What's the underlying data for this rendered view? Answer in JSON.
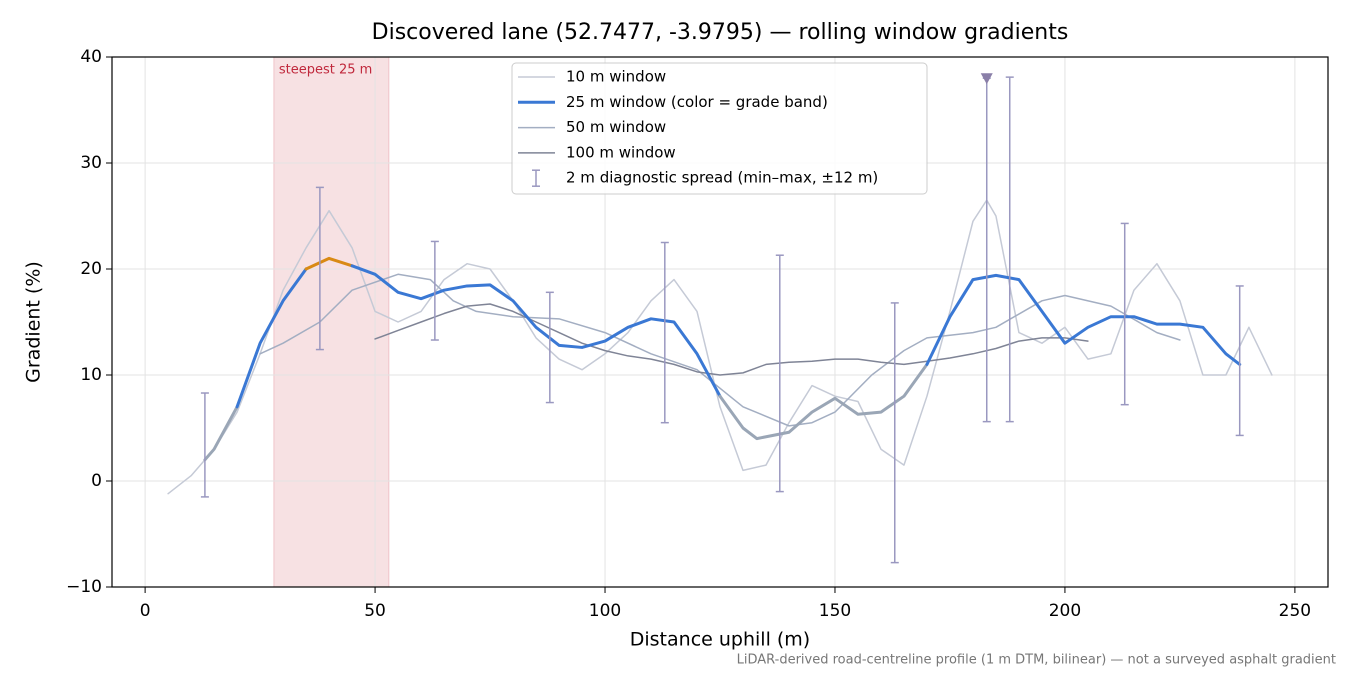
{
  "chart_data": {
    "type": "line",
    "title": "Discovered lane (52.7477, -3.9795) — rolling window gradients",
    "x_label": "Distance uphill (m)",
    "y_label": "Gradient (%)",
    "footnote": "LiDAR-derived road-centreline profile (1 m DTM, bilinear) — not a surveyed asphalt gradient",
    "xlim": [
      -7.2,
      257.2
    ],
    "ylim": [
      -10,
      40
    ],
    "xticks": [
      0,
      50,
      100,
      150,
      200,
      250
    ],
    "yticks": [
      {
        "value": -10,
        "label": "−10"
      },
      0,
      10,
      20,
      30,
      40
    ],
    "grid": true,
    "legend": "upper center",
    "highlight": {
      "x": [
        28,
        53
      ],
      "label": "steepest 25 m",
      "color": "#e8a8b0"
    },
    "grade_bands": {
      "thresholds": [
        10,
        20
      ],
      "colors": [
        "#9aa6b6",
        "#3a78d4",
        "#d98a14"
      ]
    },
    "series": [
      {
        "name": "10 m window",
        "color": "#c5cad6",
        "width": 1.5,
        "x": [
          5,
          10,
          15,
          20,
          25,
          30,
          35,
          40,
          45,
          50,
          55,
          60,
          65,
          70,
          75,
          80,
          85,
          90,
          95,
          100,
          105,
          110,
          115,
          120,
          125,
          130,
          135,
          140,
          145,
          150,
          155,
          160,
          165,
          170,
          175,
          180,
          183,
          185,
          190,
          195,
          200,
          205,
          210,
          215,
          220,
          225,
          230,
          235,
          240,
          245
        ],
        "values": [
          -1.2,
          0.5,
          3,
          6.5,
          12,
          18,
          22,
          25.5,
          22,
          16,
          15,
          16,
          19,
          20.5,
          20,
          17,
          13.5,
          11.5,
          10.5,
          12,
          14,
          17,
          19,
          16,
          7,
          1,
          1.5,
          5.5,
          9,
          8,
          7.5,
          3,
          1.5,
          8,
          16,
          24.5,
          26.5,
          25,
          14,
          13,
          14.5,
          11.5,
          12,
          18,
          20.5,
          17,
          10,
          10,
          14.5,
          10
        ]
      },
      {
        "name": "25 m window (color = grade band)",
        "color": "#3a78d4",
        "width": 3,
        "banded": true,
        "x": [
          13,
          15,
          20,
          25,
          30,
          35,
          40,
          45,
          50,
          55,
          60,
          65,
          70,
          75,
          80,
          85,
          90,
          95,
          100,
          105,
          110,
          115,
          120,
          125,
          130,
          133,
          140,
          145,
          150,
          155,
          160,
          165,
          170,
          175,
          180,
          185,
          190,
          195,
          200,
          205,
          210,
          215,
          220,
          225,
          230,
          235,
          238
        ],
        "values": [
          2,
          3,
          7,
          13,
          17,
          20,
          21,
          20.3,
          19.5,
          17.8,
          17.2,
          18,
          18.4,
          18.5,
          17,
          14.5,
          12.8,
          12.6,
          13.2,
          14.5,
          15.3,
          15,
          12,
          8,
          5,
          4,
          4.6,
          6.5,
          7.8,
          6.3,
          6.5,
          8,
          11,
          15.5,
          19,
          19.4,
          19,
          16,
          13,
          14.5,
          15.5,
          15.5,
          14.8,
          14.8,
          14.5,
          12,
          11
        ]
      },
      {
        "name": "50 m window",
        "color": "#a3aec2",
        "width": 1.5,
        "x": [
          25,
          30,
          38,
          45,
          55,
          62,
          67,
          72,
          80,
          90,
          100,
          110,
          120,
          130,
          140,
          145,
          150,
          158,
          165,
          170,
          180,
          185,
          195,
          200,
          210,
          220,
          225
        ],
        "values": [
          12,
          13,
          15,
          18,
          19.5,
          19,
          17,
          16,
          15.5,
          15.3,
          14,
          12,
          10.5,
          7,
          5.2,
          5.5,
          6.5,
          10,
          12.3,
          13.5,
          14,
          14.5,
          17,
          17.5,
          16.5,
          14,
          13.3
        ]
      },
      {
        "name": "100 m window",
        "color": "#7f8496",
        "width": 1.5,
        "x": [
          50,
          55,
          60,
          65,
          70,
          75,
          80,
          85,
          90,
          95,
          100,
          105,
          110,
          115,
          120,
          125,
          130,
          135,
          140,
          145,
          150,
          155,
          160,
          165,
          170,
          175,
          180,
          185,
          190,
          195,
          200,
          205
        ],
        "values": [
          13.4,
          14.2,
          15,
          15.8,
          16.5,
          16.7,
          16,
          15,
          14,
          13,
          12.3,
          11.8,
          11.5,
          11,
          10.3,
          10,
          10.2,
          11,
          11.2,
          11.3,
          11.5,
          11.5,
          11.2,
          11,
          11.3,
          11.6,
          12,
          12.5,
          13.2,
          13.5,
          13.5,
          13.2
        ]
      }
    ],
    "spread": {
      "name": "2 m diagnostic spread (min–max, ±12 m)",
      "color": "#9a98c0",
      "x": [
        13,
        38,
        63,
        88,
        113,
        138,
        163,
        183,
        188,
        213,
        238
      ],
      "lower": [
        -1.5,
        12.4,
        13.3,
        7.4,
        5.5,
        -1,
        -7.7,
        5.6,
        5.6,
        7.2,
        4.3
      ],
      "upper": [
        8.3,
        27.7,
        22.6,
        17.8,
        22.5,
        21.3,
        16.8,
        38,
        38.1,
        24.3,
        18.4
      ]
    },
    "offscale_marker": {
      "x": 183,
      "y": 38,
      "color": "#8a7fa8"
    }
  }
}
